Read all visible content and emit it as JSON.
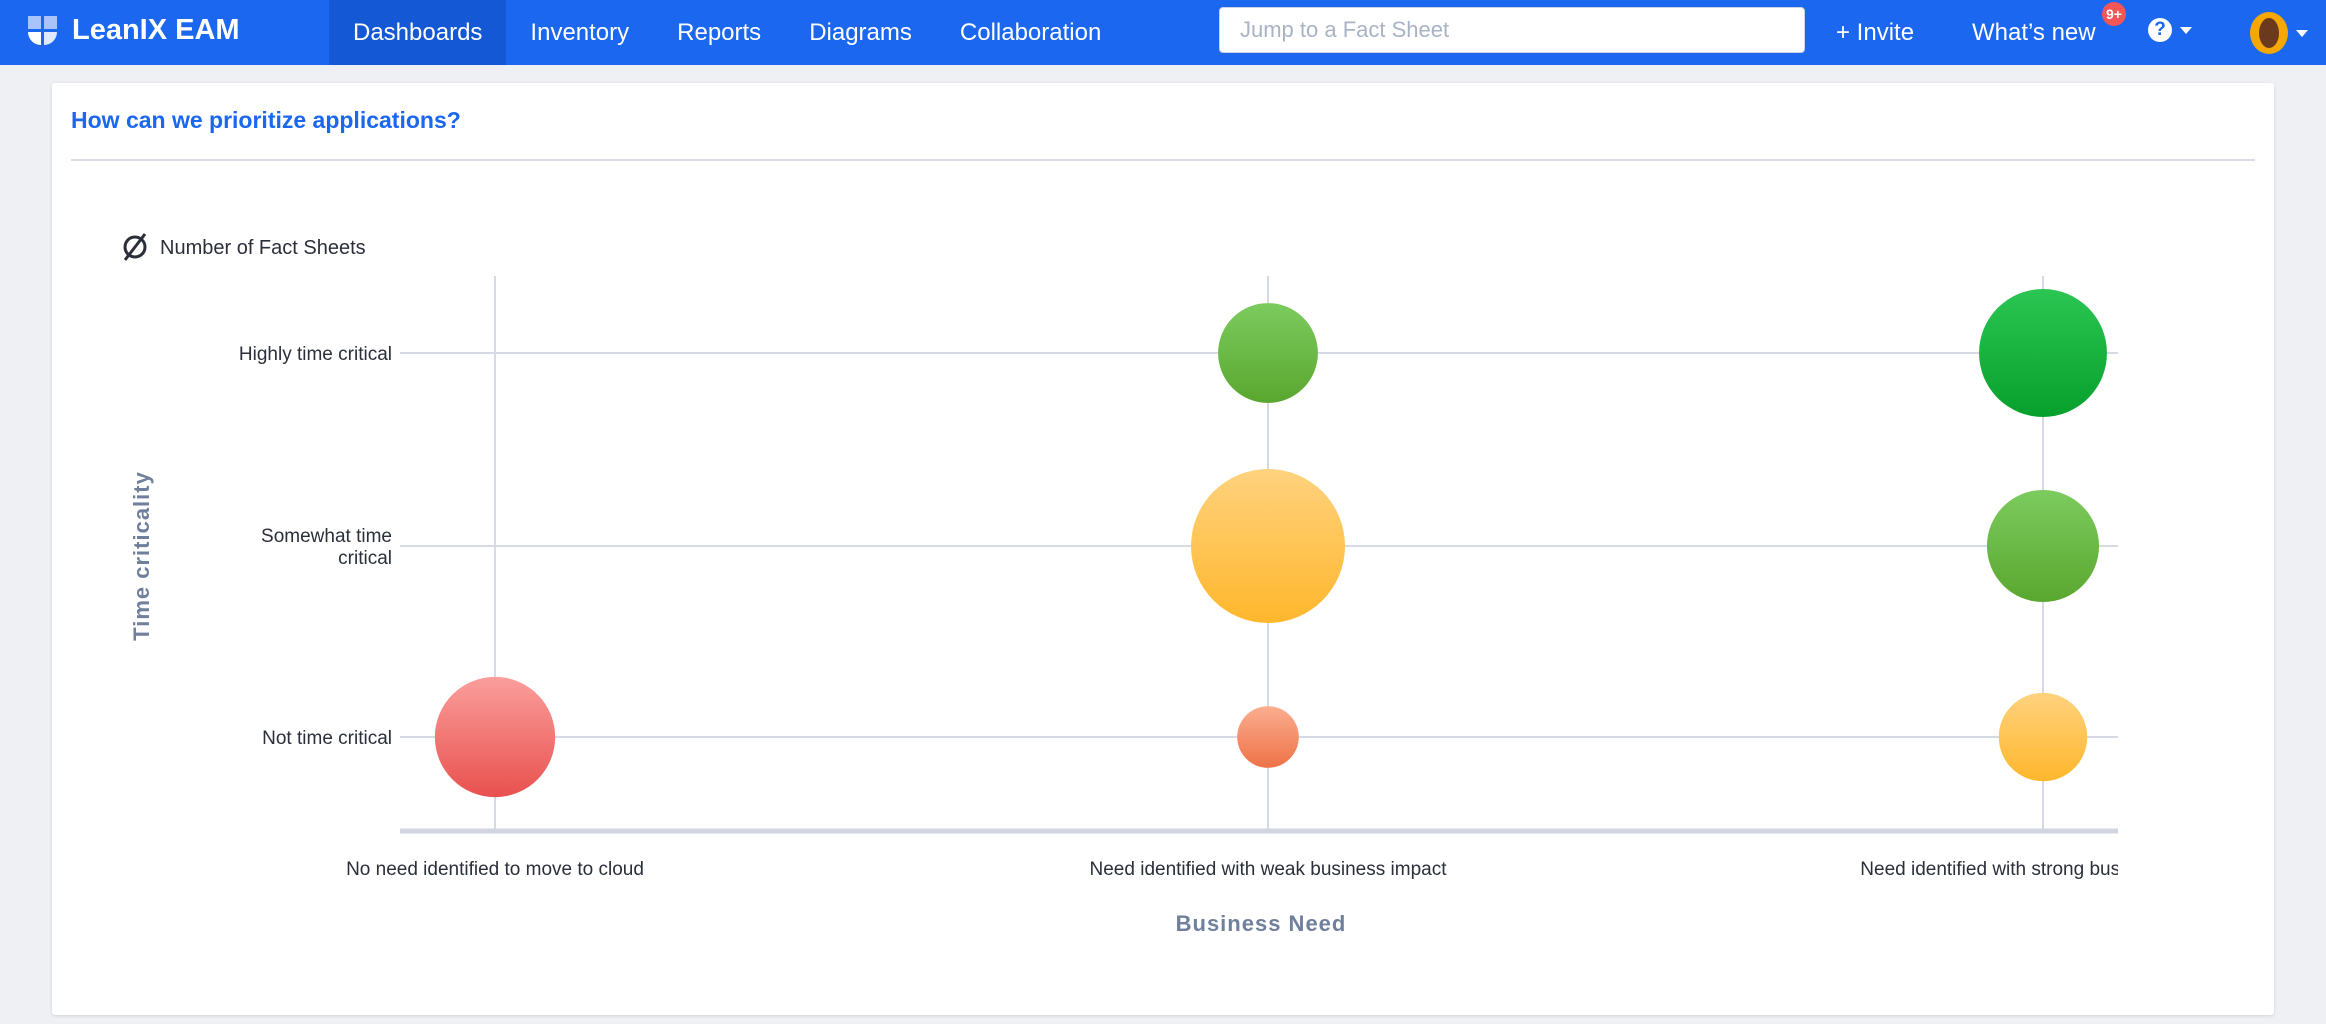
{
  "app": {
    "name": "LeanIX EAM"
  },
  "nav": {
    "items": [
      {
        "label": "Dashboards",
        "active": true
      },
      {
        "label": "Inventory",
        "active": false
      },
      {
        "label": "Reports",
        "active": false
      },
      {
        "label": "Diagrams",
        "active": false
      },
      {
        "label": "Collaboration",
        "active": false
      }
    ]
  },
  "search": {
    "placeholder": "Jump to a Fact Sheet",
    "value": ""
  },
  "header": {
    "invite_label": "+ Invite",
    "whats_new_label": "What’s new",
    "whats_new_badge": "9+",
    "help_icon": "?"
  },
  "card": {
    "title": "How can we prioritize applications?"
  },
  "chart_data": {
    "type": "bubble",
    "title": "How can we prioritize applications?",
    "legend": {
      "icon": "Ø",
      "label": "Number of Fact Sheets"
    },
    "xlabel": "Business Need",
    "ylabel": "Time criticality",
    "x_categories": [
      "No need identified to move to cloud",
      "Need identified with weak business impact",
      "Need identified with strong business impact"
    ],
    "y_categories": [
      "Not time critical",
      "Somewhat time critical",
      "Highly time critical"
    ],
    "y_tick_labels": [
      [
        "Not time critical"
      ],
      [
        "Somewhat time",
        "critical"
      ],
      [
        "Highly time critical"
      ]
    ],
    "size_unit": "relative bubble size (% of largest), estimated",
    "points": [
      {
        "x": 1,
        "y": 2,
        "size": 42,
        "color_top": "#7ccb5e",
        "color_bottom": "#5aa72f"
      },
      {
        "x": 2,
        "y": 2,
        "size": 69,
        "color_top": "#2ac552",
        "color_bottom": "#08a02c"
      },
      {
        "x": 1,
        "y": 1,
        "size": 100,
        "color_top": "#ffd27e",
        "color_bottom": "#ffb72c"
      },
      {
        "x": 2,
        "y": 1,
        "size": 53,
        "color_top": "#7ccb5e",
        "color_bottom": "#5aa72f"
      },
      {
        "x": 0,
        "y": 0,
        "size": 61,
        "color_top": "#fb9e9c",
        "color_bottom": "#e8514e"
      },
      {
        "x": 1,
        "y": 0,
        "size": 16,
        "color_top": "#fbae90",
        "color_bottom": "#ee7247"
      },
      {
        "x": 2,
        "y": 0,
        "size": 33,
        "color_top": "#ffd27e",
        "color_bottom": "#ffb72c"
      }
    ]
  }
}
